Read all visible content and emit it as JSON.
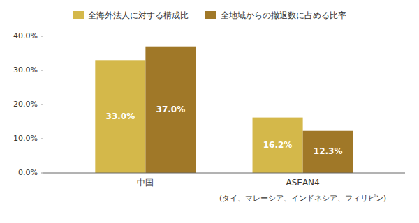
{
  "chart_data": {
    "type": "bar",
    "categories": [
      "中国",
      "ASEAN4"
    ],
    "annotation": "(タイ、マレーシア、インドネシア、フィリピン)",
    "series": [
      {
        "name": "全海外法人に対する構成比",
        "color": "#d4b84a",
        "values": [
          33.0,
          16.2
        ],
        "value_labels": [
          "33.0%",
          "16.2%"
        ]
      },
      {
        "name": "全地域からの撤退数に占める比率",
        "color": "#a07828",
        "values": [
          37.0,
          12.3
        ],
        "value_labels": [
          "37.0%",
          "12.3%"
        ]
      }
    ],
    "ylim": [
      0,
      40
    ],
    "yticks": [
      {
        "value": 0.0,
        "label": "0.0%"
      },
      {
        "value": 10.0,
        "label": "10.0%"
      },
      {
        "value": 20.0,
        "label": "20.0%"
      },
      {
        "value": 30.0,
        "label": "30.0%"
      },
      {
        "value": 40.0,
        "label": "40.0%"
      }
    ],
    "grid": false,
    "legend": "top",
    "data_labels": true
  }
}
